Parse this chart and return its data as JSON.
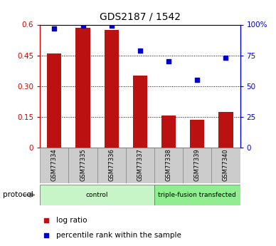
{
  "title": "GDS2187 / 1542",
  "samples": [
    "GSM77334",
    "GSM77335",
    "GSM77336",
    "GSM77337",
    "GSM77338",
    "GSM77339",
    "GSM77340"
  ],
  "log_ratio": [
    0.46,
    0.585,
    0.575,
    0.35,
    0.158,
    0.135,
    0.175
  ],
  "percentile_rank": [
    97,
    99,
    99,
    79,
    70,
    55,
    73
  ],
  "bar_color": "#bb1111",
  "dot_color": "#0000cc",
  "ylim_left": [
    0,
    0.6
  ],
  "ylim_right": [
    0,
    100
  ],
  "yticks_left": [
    0,
    0.15,
    0.3,
    0.45,
    0.6
  ],
  "ytick_labels_left": [
    "0",
    "0.15",
    "0.30",
    "0.45",
    "0.6"
  ],
  "yticks_right": [
    0,
    25,
    50,
    75,
    100
  ],
  "ytick_labels_right": [
    "0",
    "25",
    "50",
    "75",
    "100%"
  ],
  "group_spans": [
    [
      0,
      3,
      "control",
      "#c8f5c8"
    ],
    [
      4,
      6,
      "triple-fusion transfected",
      "#90ee90"
    ]
  ],
  "protocol_label": "protocol",
  "legend_items": [
    {
      "label": "log ratio",
      "color": "#bb1111"
    },
    {
      "label": "percentile rank within the sample",
      "color": "#0000cc"
    }
  ],
  "bg_color": "#ffffff",
  "tick_area_color": "#cccccc",
  "left_axis_color": "#cc0000",
  "right_axis_color": "#0000cc"
}
